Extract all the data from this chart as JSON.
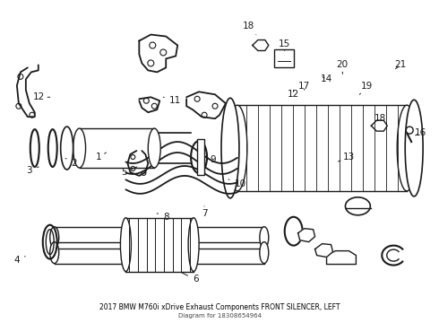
{
  "title": "2017 BMW M760i xDrive Exhaust Components FRONT SILENCER, LEFT",
  "subtitle": "Diagram for 18308654964",
  "background_color": "#ffffff",
  "fig_width": 4.9,
  "fig_height": 3.6,
  "dpi": 100,
  "line_color": "#1a1a1a",
  "label_fontsize": 7.5
}
